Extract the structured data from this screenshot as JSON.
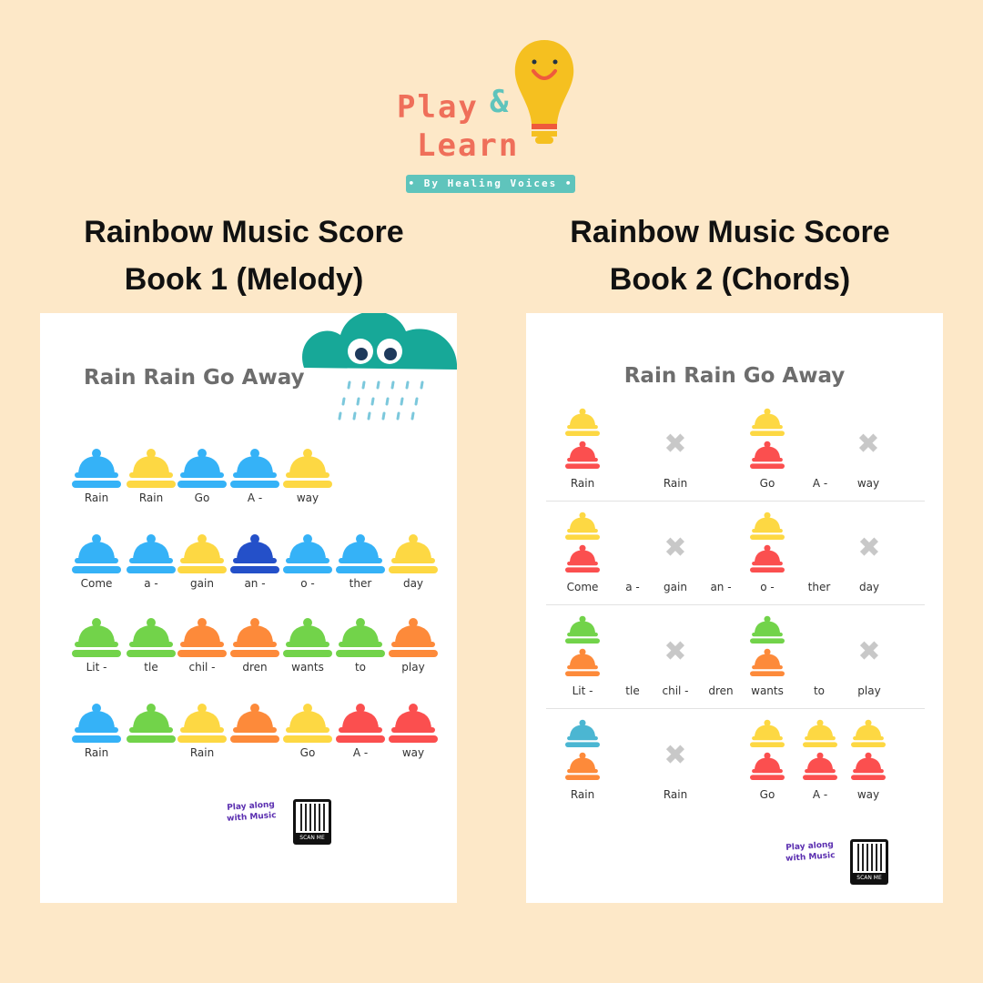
{
  "logo": {
    "word1": "Play",
    "amp": "&",
    "word2": "Learn",
    "tagline": "• By Healing Voices •"
  },
  "colors": {
    "background": "#fde8c8",
    "blue": "#35b2f7",
    "yellow": "#fdd843",
    "darkblue": "#2450c9",
    "green": "#72d34a",
    "orange": "#fd8a3a",
    "red": "#fb4f4f",
    "teal": "#4bb6d2",
    "cloud": "#17a898",
    "rest": "#c8c8c8"
  },
  "book1": {
    "heading_line1": "Rainbow Music Score",
    "heading_line2": "Book 1 (Melody)",
    "song_title": "Rain Rain Go Away",
    "rows": [
      {
        "bells": [
          "blue",
          "yellow",
          "blue",
          "blue",
          "yellow"
        ],
        "lyrics": [
          "Rain",
          "Rain",
          "Go",
          "A -",
          "way"
        ]
      },
      {
        "bells": [
          "blue",
          "blue",
          "yellow",
          "darkblue",
          "blue",
          "blue",
          "yellow"
        ],
        "lyrics": [
          "Come",
          "a -",
          "gain",
          "an -",
          "o -",
          "ther",
          "day"
        ]
      },
      {
        "bells": [
          "green",
          "green",
          "orange",
          "orange",
          "green",
          "green",
          "orange"
        ],
        "lyrics": [
          "Lit -",
          "tle",
          "chil -",
          "dren",
          "wants",
          "to",
          "play"
        ]
      },
      {
        "bells": [
          "blue",
          "green",
          "yellow",
          "orange",
          "yellow",
          "red",
          "red"
        ],
        "lyrics": [
          "Rain",
          "",
          "Rain",
          "",
          "Go",
          "A -",
          "way"
        ]
      }
    ],
    "play_along": "Play along with Music",
    "scan_me": "SCAN ME"
  },
  "book2": {
    "heading_line1": "Rainbow Music Score",
    "heading_line2": "Book 2 (Chords)",
    "song_title": "Rain Rain Go Away",
    "rows": [
      {
        "lyrics": [
          "Rain",
          "Rain",
          "Go",
          "A -",
          "way"
        ],
        "chords": [
          [
            "yellow",
            "red"
          ],
          "rest",
          [
            "yellow",
            "red"
          ],
          null,
          "rest"
        ]
      },
      {
        "lyrics": [
          "Come",
          "a -",
          "gain",
          "an -",
          "o -",
          "ther",
          "day"
        ],
        "chords": [
          [
            "yellow",
            "red"
          ],
          null,
          "rest",
          null,
          [
            "yellow",
            "red"
          ],
          null,
          "rest"
        ]
      },
      {
        "lyrics": [
          "Lit -",
          "tle",
          "chil -",
          "dren",
          "wants",
          "to",
          "play"
        ],
        "chords": [
          [
            "green",
            "orange"
          ],
          null,
          "rest",
          null,
          [
            "green",
            "orange"
          ],
          null,
          "rest"
        ]
      },
      {
        "lyrics": [
          "Rain",
          "Rain",
          "Go",
          "A -",
          "way"
        ],
        "chords": [
          [
            "teal",
            "orange"
          ],
          "rest",
          [
            "yellow",
            "red"
          ],
          [
            "yellow",
            "red"
          ],
          [
            "yellow",
            "red"
          ]
        ]
      }
    ],
    "play_along": "Play along with Music",
    "scan_me": "SCAN ME"
  }
}
